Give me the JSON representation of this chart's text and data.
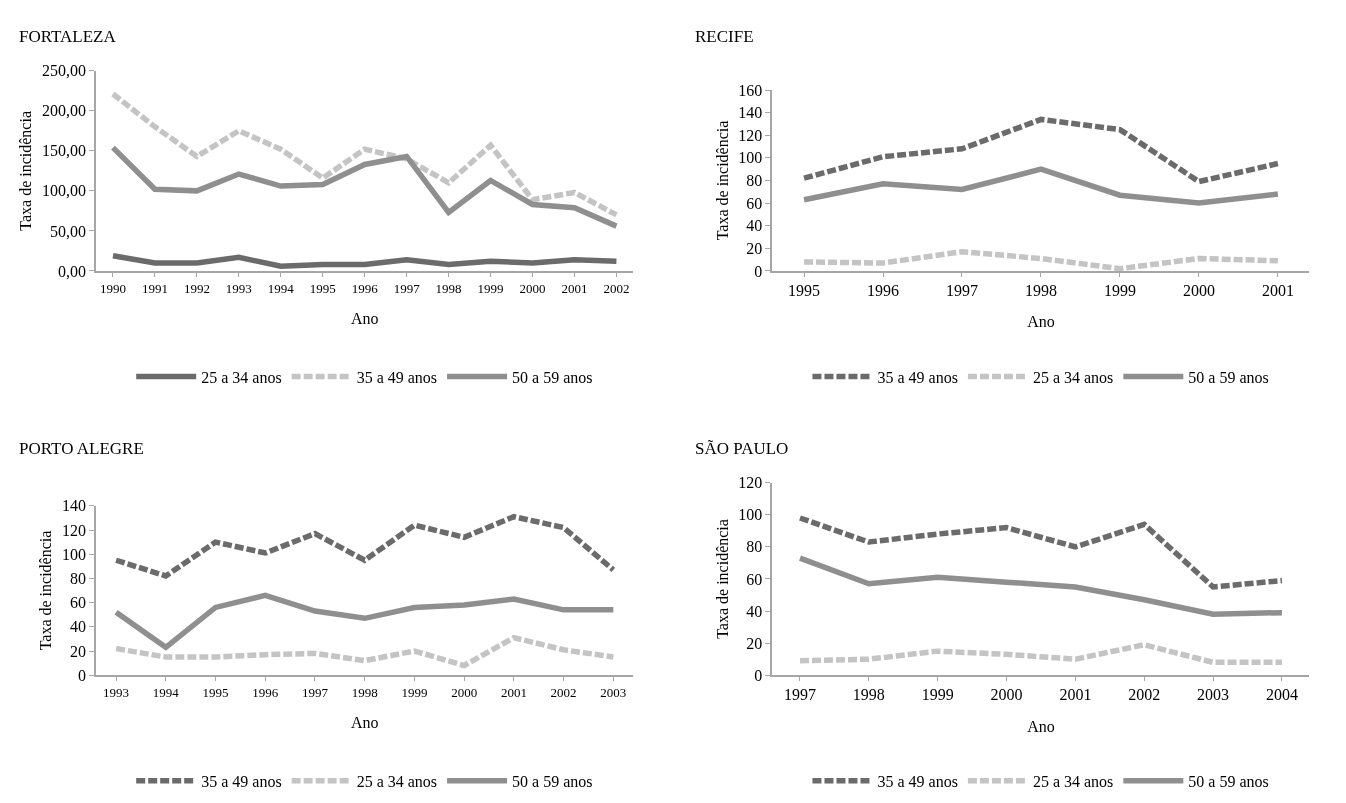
{
  "chart_data": [
    {
      "type": "line",
      "title": "FORTALEZA",
      "xlabel": "Ano",
      "ylabel": "Taxa de incidência",
      "categories": [
        "1990",
        "1991",
        "1992",
        "1993",
        "1994",
        "1995",
        "1996",
        "1997",
        "1998",
        "1999",
        "2000",
        "2001",
        "2002"
      ],
      "series": [
        {
          "name": "25 a 34 anos",
          "color": "#6b6b6b",
          "line_style": "solid",
          "values": [
            19,
            10,
            10,
            17,
            6,
            8,
            8,
            14,
            8,
            12,
            10,
            14,
            12
          ]
        },
        {
          "name": "35 a 49 anos",
          "color": "#c4c4c4",
          "line_style": "dashed",
          "values": [
            221,
            180,
            143,
            175,
            152,
            116,
            152,
            140,
            110,
            157,
            89,
            98,
            70
          ]
        },
        {
          "name": "50 a 59 anos",
          "color": "#8f8f8f",
          "line_style": "solid",
          "values": [
            154,
            102,
            100,
            121,
            106,
            108,
            133,
            143,
            73,
            113,
            83,
            79,
            56
          ]
        }
      ],
      "ylim": [
        0,
        250
      ],
      "yticks": [
        {
          "value": 0,
          "label": "0,00"
        },
        {
          "value": 50,
          "label": "50,00"
        },
        {
          "value": 100,
          "label": "100,00"
        },
        {
          "value": 150,
          "label": "150,00"
        },
        {
          "value": 200,
          "label": "200,00"
        },
        {
          "value": 250,
          "label": "250,00"
        }
      ],
      "legend": "bottom",
      "marker": "none"
    },
    {
      "type": "line",
      "title": "RECIFE",
      "xlabel": "Ano",
      "ylabel": "Taxa de incidência",
      "categories": [
        "1995",
        "1996",
        "1997",
        "1998",
        "1999",
        "2000",
        "2001"
      ],
      "series": [
        {
          "name": "35 a 49 anos",
          "color": "#6b6b6b",
          "line_style": "dashed",
          "values": [
            82,
            101,
            108,
            134,
            125,
            79,
            95
          ]
        },
        {
          "name": "25 a 34 anos",
          "color": "#c4c4c4",
          "line_style": "dashed",
          "values": [
            8,
            7,
            17,
            11,
            2,
            11,
            9
          ]
        },
        {
          "name": "50 a 59 anos",
          "color": "#8f8f8f",
          "line_style": "solid",
          "values": [
            63,
            77,
            72,
            90,
            67,
            60,
            68
          ]
        }
      ],
      "ylim": [
        0,
        160
      ],
      "yticks": [
        0,
        20,
        40,
        60,
        80,
        100,
        120,
        140,
        160
      ],
      "legend": "bottom",
      "marker": "none"
    },
    {
      "type": "line",
      "title": "PORTO ALEGRE",
      "xlabel": "Ano",
      "ylabel": "Taxa de incidência",
      "categories": [
        "1993",
        "1994",
        "1995",
        "1996",
        "1997",
        "1998",
        "1999",
        "2000",
        "2001",
        "2002",
        "2003"
      ],
      "series": [
        {
          "name": "35 a 49 anos",
          "color": "#6b6b6b",
          "line_style": "dashed",
          "values": [
            95,
            82,
            110,
            101,
            117,
            95,
            124,
            114,
            131,
            122,
            87
          ]
        },
        {
          "name": "25 a 34 anos",
          "color": "#c4c4c4",
          "line_style": "dashed",
          "values": [
            22,
            15,
            15,
            17,
            18,
            12,
            20,
            8,
            31,
            21,
            15
          ]
        },
        {
          "name": "50 a 59 anos",
          "color": "#8f8f8f",
          "line_style": "solid",
          "values": [
            52,
            23,
            56,
            66,
            53,
            47,
            56,
            58,
            63,
            54,
            54
          ]
        }
      ],
      "ylim": [
        0,
        140
      ],
      "yticks": [
        0,
        20,
        40,
        60,
        80,
        100,
        120,
        140
      ],
      "legend": "bottom",
      "marker": "none"
    },
    {
      "type": "line",
      "title": "SÃO PAULO",
      "xlabel": "Ano",
      "ylabel": "Taxa de incidência",
      "categories": [
        "1997",
        "1998",
        "1999",
        "2000",
        "2001",
        "2002",
        "2003",
        "2004"
      ],
      "series": [
        {
          "name": "35 a 49 anos",
          "color": "#6b6b6b",
          "line_style": "dashed",
          "values": [
            98,
            83,
            88,
            92,
            80,
            94,
            55,
            59
          ]
        },
        {
          "name": "25 a 34 anos",
          "color": "#c4c4c4",
          "line_style": "dashed",
          "values": [
            9,
            10,
            15,
            13,
            10,
            19,
            8,
            8
          ]
        },
        {
          "name": "50 a 59 anos",
          "color": "#8f8f8f",
          "line_style": "solid",
          "values": [
            73,
            57,
            61,
            58,
            55,
            47,
            38,
            39
          ]
        }
      ],
      "ylim": [
        0,
        120
      ],
      "yticks": [
        0,
        20,
        40,
        60,
        80,
        100,
        120
      ],
      "legend": "bottom",
      "marker": "none"
    }
  ]
}
